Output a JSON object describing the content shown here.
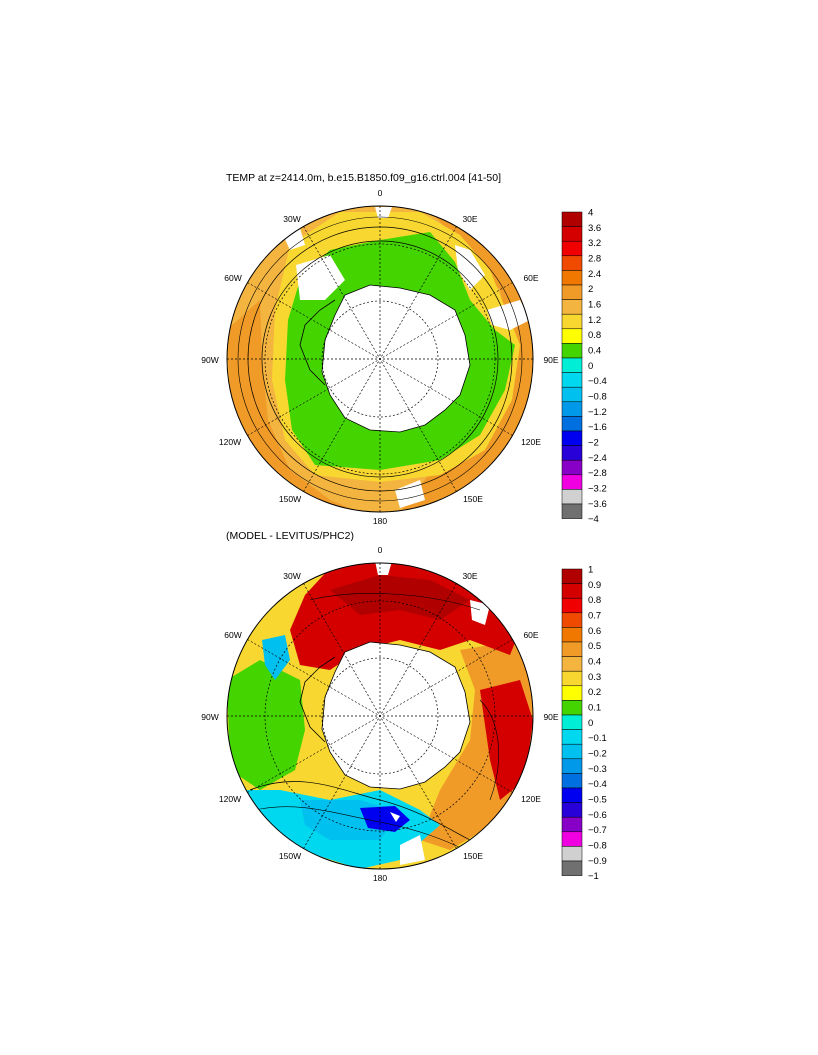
{
  "panels": [
    {
      "title": "TEMP at z=2414.0m, b.e15.B1850.f09_g16.ctrl.004 [41-50]",
      "lon_labels": [
        "0",
        "30E",
        "60E",
        "90E",
        "120E",
        "150E",
        "180",
        "150W",
        "120W",
        "90W",
        "60W",
        "30W"
      ],
      "colorbar": {
        "labels": [
          "4",
          "3.6",
          "3.2",
          "2.8",
          "2.4",
          "2",
          "1.6",
          "1.2",
          "0.8",
          "0.4",
          "0",
          "−0.4",
          "−0.8",
          "−1.2",
          "−1.6",
          "−2",
          "−2.4",
          "−2.8",
          "−3.2",
          "−3.6",
          "−4"
        ],
        "colors": [
          "#b00000",
          "#d40000",
          "#f00000",
          "#f04a00",
          "#f07800",
          "#f09a28",
          "#f4b440",
          "#f8d830",
          "#ffff00",
          "#44d400",
          "#00eed6",
          "#00d8f0",
          "#00c0f0",
          "#0098e8",
          "#0070e0",
          "#0000f0",
          "#2800d8",
          "#8800c8",
          "#f000e0",
          "#d0d0d0",
          "#707070"
        ]
      }
    },
    {
      "title": "(MODEL - LEVITUS/PHC2)",
      "lon_labels": [
        "0",
        "30E",
        "60E",
        "90E",
        "120E",
        "150E",
        "180",
        "150W",
        "120W",
        "90W",
        "60W",
        "30W"
      ],
      "colorbar": {
        "labels": [
          "1",
          "0.9",
          "0.8",
          "0.7",
          "0.6",
          "0.5",
          "0.4",
          "0.3",
          "0.2",
          "0.1",
          "0",
          "−0.1",
          "−0.2",
          "−0.3",
          "−0.4",
          "−0.5",
          "−0.6",
          "−0.7",
          "−0.8",
          "−0.9",
          "−1"
        ],
        "colors": [
          "#b00000",
          "#d40000",
          "#f00000",
          "#f04a00",
          "#f07800",
          "#f09a28",
          "#f4b440",
          "#f8d830",
          "#ffff00",
          "#44d400",
          "#00eed6",
          "#00d8f0",
          "#00c0f0",
          "#0098e8",
          "#0070e0",
          "#0000f0",
          "#2800d8",
          "#8800c8",
          "#f000e0",
          "#d0d0d0",
          "#707070"
        ]
      }
    }
  ]
}
